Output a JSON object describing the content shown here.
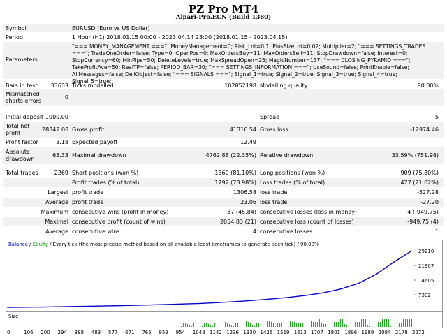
{
  "report": {
    "title": "PZ Pro MT4",
    "subtitle": "Alpari-Pro.ECN (Build 1380)"
  },
  "info": {
    "symbol_label": "Symbol",
    "symbol_value": "EURUSD (Euro vs US Dollar)",
    "period_label": "Period",
    "period_value": "1 Hour (H1) 2018.01.15 00:00 - 2023.04.14 23:00 (2018.01.15 - 2023.04.15)",
    "parameters_label": "Parameters",
    "parameters_value": "\"=== MONEY_MANAGEMENT ===\"; MoneyManagement=0; Risk_Lot=0.1; PlusSizeLot=0.02; Multiplier=2; \"=== SETTINGS_TRADES ===\"; TradeOneOrder=false; Type=0; OpenPos=0; MaxOrdersBuy=11; MaxOrdersSell=11; StopDrawdown=false; Interest=0; StopCurrency=60; MinPips=50; DeleteLevels=true; MaxSpreadOpen=25; MagicNumber=137; \"=== CLOSING_PYRAMID ===\"; TakeProfitAve=50; RealTP=false; PERIOD_BAR=30; \"=== SETTINGS_INFORMATION ===\"; UseSound=false; PrintEnable=false; AllMessages=false; DellObject=false; \"=== SIGNALS ===\"; Signal_1=true; Signal_2=true; Signal_3=true; Signal_4=true; Signal_5=true;"
  },
  "stats": {
    "bars_label": "Bars in test",
    "bars_value": "33633",
    "ticks_label": "Ticks modelled",
    "ticks_value": "102852198",
    "quality_label": "Modelling quality",
    "quality_value": "90.00%",
    "mismatch_label": "Mismatched charts errors",
    "mismatch_value": "0",
    "deposit_label": "Initial deposit",
    "deposit_value": "1000.00",
    "spread_label": "Spread",
    "spread_value": "5",
    "netprofit_label": "Total net profit",
    "netprofit_value": "28342.08",
    "grossprofit_label": "Gross profit",
    "grossprofit_value": "41316.54",
    "grossloss_label": "Gross loss",
    "grossloss_value": "-12974.46",
    "pf_label": "Profit factor",
    "pf_value": "3.18",
    "ep_label": "Expected payoff",
    "ep_value": "12.49",
    "absdd_label": "Absolute drawdown",
    "absdd_value": "63.33",
    "maxdd_label": "Maximal drawdown",
    "maxdd_value": "4762.88 (22.35%)",
    "reldd_label": "Relative drawdown",
    "reldd_value": "33.59% (751.98)",
    "trades_label": "Total trades",
    "trades_value": "2269",
    "short_label": "Short positions (won %)",
    "short_value": "1360 (81.10%)",
    "long_label": "Long positions (won %)",
    "long_value": "909 (75.80%)",
    "profittrades_label": "Profit trades (% of total)",
    "profittrades_value": "1792 (78.98%)",
    "losstrades_label": "Loss trades (% of total)",
    "losstrades_value": "477 (21.02%)",
    "largest_label": "Largest",
    "largest_profit_label": "profit trade",
    "largest_profit_value": "1306.58",
    "largest_loss_label": "loss trade",
    "largest_loss_value": "-527.28",
    "average_label": "Average",
    "average_profit_label": "profit trade",
    "average_profit_value": "23.06",
    "average_loss_label": "loss trade",
    "average_loss_value": "-27.20",
    "maximum_label": "Maximum",
    "max_wins_label": "consecutive wins (profit in money)",
    "max_wins_value": "37 (45.84)",
    "max_losses_label": "consecutive losses (loss in money)",
    "max_losses_value": "4 (-949.75)",
    "maximal_label": "Maximal",
    "maximal_wins_label": "consecutive profit (count of wins)",
    "maximal_wins_value": "2054.83 (21)",
    "maximal_losses_label": "consecutive loss (count of losses)",
    "maximal_losses_value": "-949.75 (4)",
    "avgcons_label": "Average",
    "avgcons_wins_label": "consecutive wins",
    "avgcons_wins_value": "4",
    "avgcons_losses_label": "consecutive losses",
    "avgcons_losses_value": "1"
  },
  "chart": {
    "legend_balance": "Balance",
    "legend_sep1": " / ",
    "legend_equity": "Equity",
    "legend_rest": " / Every tick (the most precise method based on all available least timeframes to generate each tick) / 90.00%",
    "size_label": "Size",
    "colors": {
      "balance": "#0000c8",
      "equity": "#00a000",
      "size_bars": "#22aa22",
      "border": "#9a9a9a"
    }
  },
  "chart_data": {
    "type": "line",
    "series": [
      {
        "name": "Balance",
        "x": [
          0,
          200,
          400,
          600,
          800,
          1000,
          1100,
          1200,
          1300,
          1400,
          1500,
          1600,
          1700,
          1800,
          1900,
          2000,
          2100,
          2200,
          2300
        ],
        "values": [
          1000,
          1200,
          1500,
          1800,
          2200,
          2700,
          3000,
          3400,
          3900,
          4500,
          5200,
          6000,
          7000,
          8300,
          10200,
          13000,
          17500,
          23500,
          29000
        ]
      }
    ],
    "xticks": [
      "0",
      "106",
      "200",
      "294",
      "388",
      "483",
      "577",
      "671",
      "765",
      "859",
      "954",
      "1048",
      "1142",
      "1236",
      "1330",
      "1425",
      "1519",
      "1613",
      "1707",
      "1801",
      "1896",
      "1989",
      "2084",
      "2178",
      "2272"
    ],
    "yticks": [
      "29210",
      "21907",
      "14605",
      "7302"
    ],
    "xlim": [
      0,
      2310
    ],
    "ylim": [
      0,
      31000
    ]
  }
}
